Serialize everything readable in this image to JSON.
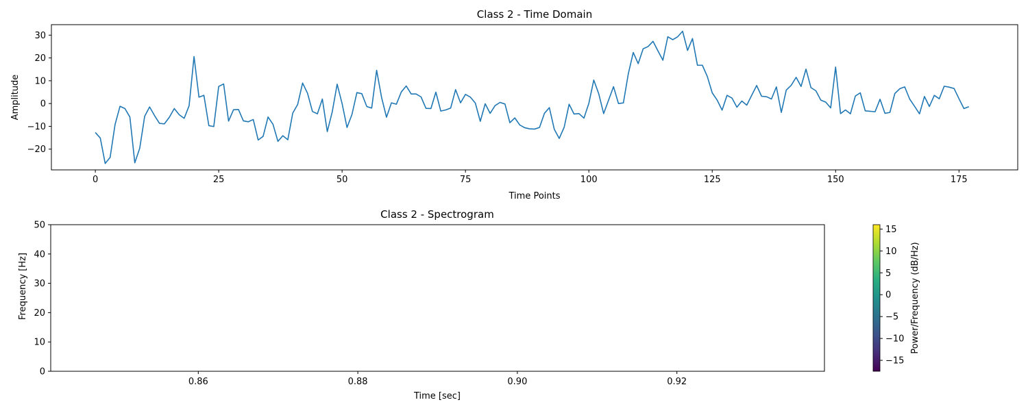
{
  "chart_data": [
    {
      "type": "line",
      "title": "Class 2 - Time Domain",
      "xlabel": "Time Points",
      "ylabel": "Amplitude",
      "xlim": [
        -8.9,
        186.9
      ],
      "ylim": [
        -29.1,
        34.6
      ],
      "xticks": [
        0,
        25,
        50,
        75,
        100,
        125,
        150,
        175
      ],
      "xtick_labels": [
        "0",
        "25",
        "50",
        "75",
        "100",
        "125",
        "150",
        "175"
      ],
      "yticks": [
        -20,
        -10,
        0,
        10,
        20,
        30
      ],
      "ytick_labels": [
        "−20",
        "−10",
        "0",
        "10",
        "20",
        "30"
      ],
      "color": "#1f77b4",
      "grid": false,
      "series": [
        {
          "values": [
            -12.7,
            -15.1,
            -26.3,
            -23.6,
            -9.2,
            -1.2,
            -2.2,
            -5.9,
            -26.0,
            -19.6,
            -5.6,
            -1.5,
            -5.3,
            -8.7,
            -8.9,
            -6.0,
            -2.2,
            -4.9,
            -6.5,
            -1.0,
            20.6,
            2.8,
            3.6,
            -9.7,
            -10.1,
            7.5,
            8.6,
            -7.7,
            -2.7,
            -2.6,
            -7.6,
            -8.0,
            -7.0,
            -16.0,
            -14.4,
            -5.9,
            -9.1,
            -16.6,
            -14.1,
            -15.9,
            -4.2,
            -0.4,
            9.0,
            4.5,
            -3.5,
            -4.5,
            2.0,
            -12.3,
            -3.7,
            8.5,
            0.0,
            -10.5,
            -4.8,
            4.8,
            4.3,
            -1.3,
            -2.0,
            14.6,
            2.7,
            -6.0,
            0.3,
            -0.3,
            5.1,
            7.7,
            4.2,
            4.2,
            2.9,
            -2.1,
            -2.2,
            5.0,
            -3.3,
            -2.8,
            -2.0,
            6.1,
            0.3,
            4.0,
            2.8,
            0.2,
            -7.8,
            -0.1,
            -4.3,
            -0.9,
            0.5,
            -0.2,
            -8.4,
            -6.3,
            -9.4,
            -10.6,
            -11.1,
            -11.2,
            -10.5,
            -4.3,
            -1.8,
            -11.3,
            -15.3,
            -10.4,
            -0.3,
            -4.6,
            -4.4,
            -6.4,
            0.1,
            10.3,
            4.3,
            -4.4,
            1.5,
            7.4,
            0.0,
            0.3,
            13.1,
            22.4,
            17.5,
            24.0,
            25.0,
            27.3,
            23.1,
            19.0,
            29.3,
            28.0,
            29.3,
            31.7,
            23.3,
            28.5,
            16.8,
            16.8,
            11.9,
            4.7,
            1.5,
            -2.9,
            3.6,
            2.4,
            -1.6,
            1.1,
            -0.7,
            3.6,
            7.9,
            3.2,
            3.0,
            2.0,
            7.3,
            -3.9,
            5.9,
            8.0,
            11.5,
            7.5,
            15.1,
            7.0,
            5.6,
            1.5,
            0.6,
            -1.9,
            16.0,
            -4.4,
            -2.8,
            -4.5,
            3.3,
            4.7,
            -3.2,
            -3.4,
            -3.6,
            1.9,
            -4.3,
            -3.9,
            4.4,
            6.5,
            7.3,
            2.0,
            -1.2,
            -4.5,
            3.1,
            -1.3,
            3.6,
            2.1,
            7.6,
            7.2,
            6.6,
            2.1,
            -2.2,
            -1.4
          ]
        }
      ]
    },
    {
      "type": "heatmap",
      "title": "Class 2 - Spectrogram",
      "xlabel": "Time [sec]",
      "ylabel": "Frequency [Hz]",
      "xlim": [
        0.8415,
        0.9385
      ],
      "ylim": [
        0,
        50
      ],
      "xticks": [
        0.86,
        0.88,
        0.9,
        0.92
      ],
      "xtick_labels": [
        "0.86",
        "0.88",
        "0.90",
        "0.92"
      ],
      "yticks": [
        0,
        10,
        20,
        30,
        40,
        50
      ],
      "ytick_labels": [
        "0",
        "10",
        "20",
        "30",
        "40",
        "50"
      ],
      "values": [],
      "colorbar": {
        "label": "Power/Frequency (dB/Hz)",
        "colormap": "viridis",
        "range": [
          -17.5,
          16.0
        ],
        "ticks": [
          -15,
          -10,
          -5,
          0,
          5,
          10,
          15
        ],
        "tick_labels": [
          "−15",
          "−10",
          "−5",
          "0",
          "5",
          "10",
          "15"
        ]
      }
    }
  ]
}
